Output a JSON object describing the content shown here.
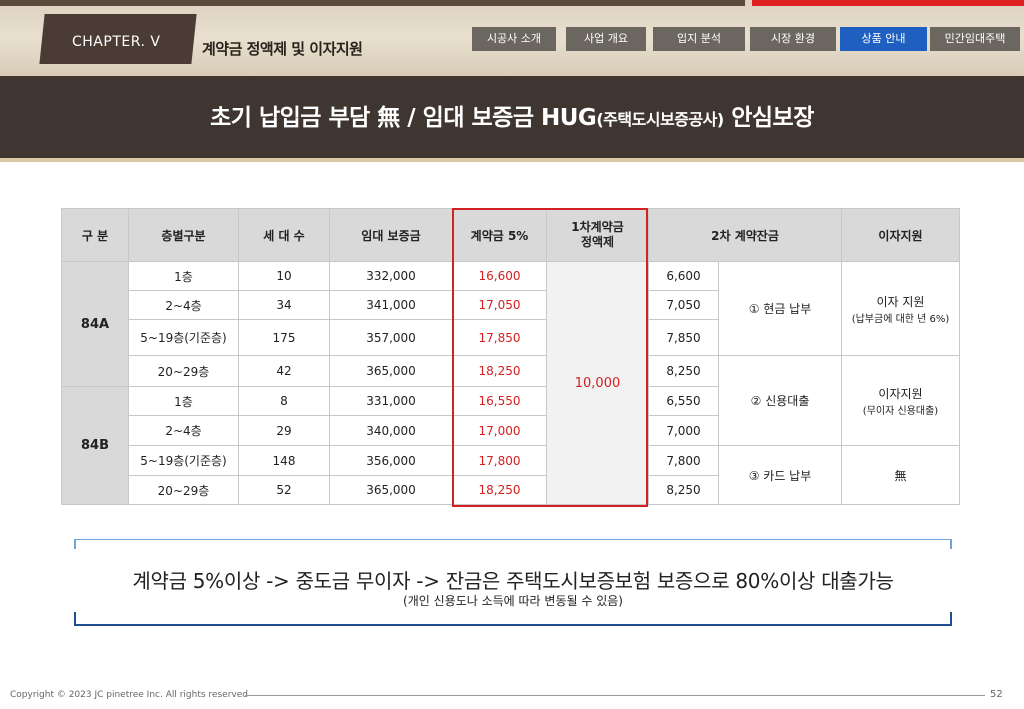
{
  "header": {
    "chapter": "CHAPTER. Ⅴ",
    "title": "계약금 정액제 및 이자지원",
    "nav": [
      "시공사 소개",
      "사업 개요",
      "입지 분석",
      "시장 환경",
      "상품 안내",
      "민간임대주택"
    ],
    "active_nav": "상품 안내",
    "accent_color": "#1f5fbf"
  },
  "banner": {
    "text_main": "초기 납입금 부담 無   / 임대 보증금 HUG",
    "text_small": "(주택도시보증공사)",
    "text_end": " 안심보장"
  },
  "table": {
    "headers": [
      "구  분",
      "층별구분",
      "세 대 수",
      "임대 보증금",
      "계약금 5%",
      "1차계약금 정액제",
      "2차 계약잔금",
      "이자지원"
    ],
    "types": [
      "84A",
      "84B"
    ],
    "rows": [
      {
        "floor": "1층",
        "units": "10",
        "deposit": "332,000",
        "contract": "16,600",
        "balance": "6,600"
      },
      {
        "floor": "2~4층",
        "units": "34",
        "deposit": "341,000",
        "contract": "17,050",
        "balance": "7,050"
      },
      {
        "floor": "5~19층(기준층)",
        "units": "175",
        "deposit": "357,000",
        "contract": "17,850",
        "balance": "7,850"
      },
      {
        "floor": "20~29층",
        "units": "42",
        "deposit": "365,000",
        "contract": "18,250",
        "balance": "8,250"
      },
      {
        "floor": "1층",
        "units": "8",
        "deposit": "331,000",
        "contract": "16,550",
        "balance": "6,550"
      },
      {
        "floor": "2~4층",
        "units": "29",
        "deposit": "340,000",
        "contract": "17,000",
        "balance": "7,000"
      },
      {
        "floor": "5~19층(기준층)",
        "units": "148",
        "deposit": "356,000",
        "contract": "17,800",
        "balance": "7,800"
      },
      {
        "floor": "20~29층",
        "units": "52",
        "deposit": "365,000",
        "contract": "18,250",
        "balance": "8,250"
      }
    ],
    "fixed_first_payment": "10,000",
    "payment_methods": [
      "① 현금 납부",
      "② 신용대출",
      "③ 카드 납부"
    ],
    "interest_support": [
      {
        "main": "이자 지원",
        "note": "(납부금에 대한 년 6%)"
      },
      {
        "main": "이자지원",
        "note": "(무이자 신용대출)"
      },
      {
        "main": "無",
        "note": ""
      }
    ]
  },
  "summary": {
    "main": "계약금 5%이상 -> 중도금 무이자 -> 잔금은 주택도시보증보험 보증으로 80%이상 대출가능",
    "sub": "(개인 신용도나 소득에 따라 변동될 수 있음)"
  },
  "footer": {
    "copyright": "Copyright © 2023 JC pinetree Inc. All rights reserved",
    "page": "52"
  }
}
